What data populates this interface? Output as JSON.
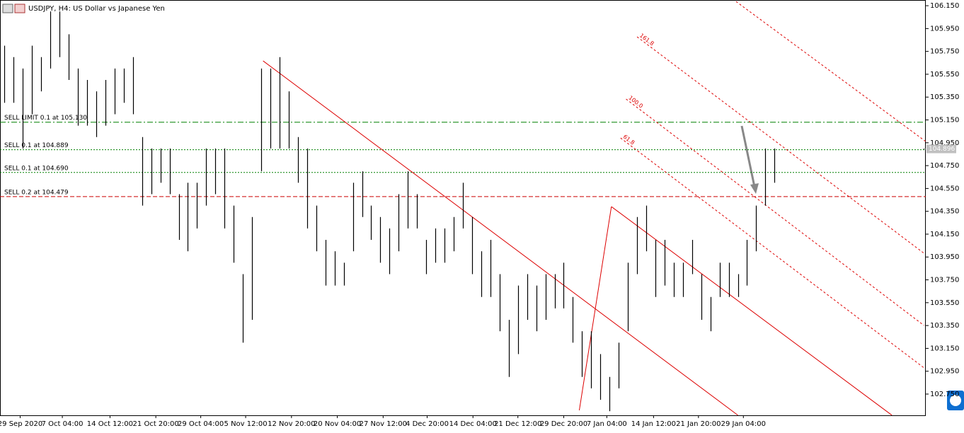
{
  "chart_data": {
    "type": "ohlc",
    "title": "USDJPY, H4:  US Dollar vs Japanese Yen",
    "ylim": [
      102.564,
      106.2
    ],
    "xlim": [
      -0.5,
      100.5
    ],
    "yticks": [
      {
        "value": 106.15,
        "label": "106.150"
      },
      {
        "value": 105.95,
        "label": "105.950"
      },
      {
        "value": 105.75,
        "label": "105.750"
      },
      {
        "value": 105.55,
        "label": "105.550"
      },
      {
        "value": 105.35,
        "label": "105.350"
      },
      {
        "value": 105.15,
        "label": "105.150"
      },
      {
        "value": 104.95,
        "label": "104.950"
      },
      {
        "value": 104.75,
        "label": "104.750"
      },
      {
        "value": 104.55,
        "label": "104.550"
      },
      {
        "value": 104.35,
        "label": "104.350"
      },
      {
        "value": 104.15,
        "label": "104.150"
      },
      {
        "value": 103.95,
        "label": "103.950"
      },
      {
        "value": 103.75,
        "label": "103.750"
      },
      {
        "value": 103.55,
        "label": "103.550"
      },
      {
        "value": 103.35,
        "label": "103.350"
      },
      {
        "value": 103.15,
        "label": "103.150"
      },
      {
        "value": 102.95,
        "label": "102.950"
      },
      {
        "value": 102.75,
        "label": "102.750"
      }
    ],
    "xticks": [
      {
        "value": 1.7,
        "label": "29 Sep 2020"
      },
      {
        "value": 6.3,
        "label": "7 Oct 04:00"
      },
      {
        "value": 11.5,
        "label": "14 Oct 12:00"
      },
      {
        "value": 16.5,
        "label": "21 Oct 20:00"
      },
      {
        "value": 21.4,
        "label": "29 Oct 04:00"
      },
      {
        "value": 26.3,
        "label": "5 Nov 12:00"
      },
      {
        "value": 31.3,
        "label": "12 Nov 20:00"
      },
      {
        "value": 36.3,
        "label": "20 Nov 04:00"
      },
      {
        "value": 41.3,
        "label": "27 Nov 12:00"
      },
      {
        "value": 46.1,
        "label": "4 Dec 20:00"
      },
      {
        "value": 51.1,
        "label": "14 Dec 04:00"
      },
      {
        "value": 56.0,
        "label": "21 Dec 12:00"
      },
      {
        "value": 61.0,
        "label": "29 Dec 20:00"
      },
      {
        "value": 65.7,
        "label": "7 Jan 04:00"
      },
      {
        "value": 70.8,
        "label": "14 Jan 12:00"
      },
      {
        "value": 75.7,
        "label": "21 Jan 20:00"
      },
      {
        "value": 80.6,
        "label": "29 Jan 04:00"
      }
    ],
    "high": [
      105.8,
      105.7,
      105.6,
      105.8,
      105.7,
      106.1,
      106.1,
      105.9,
      105.6,
      105.5,
      105.4,
      105.5,
      105.6,
      105.6,
      105.7,
      105.0,
      104.9,
      104.9,
      104.9,
      104.5,
      104.6,
      104.6,
      104.9,
      104.9,
      104.9,
      104.4,
      103.8,
      104.3,
      105.6,
      105.6,
      105.7,
      105.4,
      105.0,
      104.9,
      104.4,
      104.1,
      104.0,
      103.9,
      104.6,
      104.7,
      104.4,
      104.3,
      104.2,
      104.5,
      104.7,
      104.5,
      104.1,
      104.2,
      104.2,
      104.3,
      104.6,
      104.3,
      104.0,
      104.1,
      103.8,
      103.4,
      103.7,
      103.8,
      103.7,
      103.8,
      103.8,
      103.9,
      103.6,
      103.3,
      103.3,
      103.1,
      102.9,
      103.2,
      103.9,
      104.3,
      104.4,
      104.1,
      104.1,
      103.9,
      103.9,
      104.1,
      103.8,
      103.6,
      103.9,
      103.9,
      103.8,
      104.1,
      104.4,
      104.9,
      104.9
    ],
    "low": [
      105.3,
      105.3,
      104.9,
      105.2,
      105.4,
      105.6,
      105.7,
      105.5,
      105.1,
      105.1,
      105.0,
      105.1,
      105.2,
      105.3,
      105.2,
      104.4,
      104.5,
      104.6,
      104.5,
      104.1,
      104.0,
      104.2,
      104.4,
      104.5,
      104.2,
      103.9,
      103.2,
      103.4,
      104.7,
      104.9,
      104.9,
      104.9,
      104.6,
      104.2,
      104.0,
      103.7,
      103.7,
      103.7,
      104.0,
      104.3,
      104.1,
      103.9,
      103.8,
      104.0,
      104.2,
      104.2,
      103.8,
      103.9,
      103.9,
      104.0,
      104.2,
      103.8,
      103.6,
      103.6,
      103.3,
      102.9,
      103.1,
      103.4,
      103.3,
      103.4,
      103.5,
      103.5,
      103.2,
      102.9,
      102.8,
      102.7,
      102.6,
      102.8,
      103.3,
      103.8,
      104.0,
      103.6,
      103.7,
      103.6,
      103.6,
      103.8,
      103.4,
      103.3,
      103.6,
      103.6,
      103.6,
      103.7,
      104.0,
      104.4,
      104.6
    ],
    "bid": 104.896,
    "orders": [
      {
        "label": "SELL LIMIT 0.1 at 105.130",
        "price": 105.13,
        "color": "#008000",
        "dash": "8 3 2 3"
      },
      {
        "label": "SELL 0.1 at 104.889",
        "price": 104.889,
        "color": "#008000",
        "dash": "2 2"
      },
      {
        "label": "SELL 0.1 at 104.690",
        "price": 104.69,
        "color": "#008000",
        "dash": "2 2"
      },
      {
        "label": "SELL 0.2 at 104.479",
        "price": 104.479,
        "color": "#cc0000",
        "dash": "6 3"
      }
    ],
    "trendlines": [
      {
        "x": [
          28.2,
          80.0
        ],
        "y": [
          105.667,
          102.565
        ],
        "color": "#dd0000"
      },
      {
        "x": [
          66.2,
          96.8
        ],
        "y": [
          104.391,
          102.565
        ],
        "color": "#dd0000"
      },
      {
        "x": [
          62.7,
          66.2
        ],
        "y": [
          102.608,
          104.391
        ],
        "color": "#dd0000"
      }
    ],
    "fib_lines": [
      {
        "x": [
          79.8,
          100.5
        ],
        "y": [
          106.187,
          104.961
        ]
      },
      {
        "label": "161.8",
        "x": [
          69.0,
          100.3
        ],
        "y": [
          105.878,
          103.983
        ]
      },
      {
        "label": "100.0",
        "x": [
          67.8,
          100.3
        ],
        "y": [
          105.333,
          103.351
        ]
      },
      {
        "label": "61.8",
        "x": [
          67.2,
          100.3
        ],
        "y": [
          104.992,
          102.98
        ]
      }
    ],
    "fib_color": "#dd0000"
  }
}
